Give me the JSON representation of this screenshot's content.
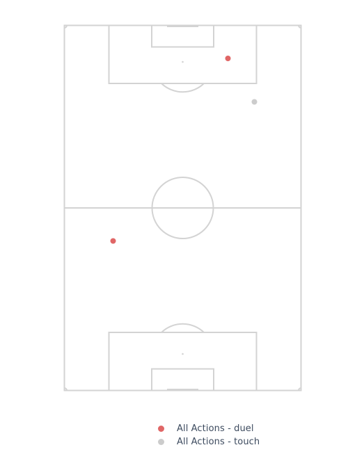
{
  "chart_data": {
    "type": "scatter",
    "title": "",
    "xlabel": "",
    "ylabel": "",
    "pitch": {
      "length": 105,
      "width": 68,
      "orientation": "vertical"
    },
    "xlim": [
      0,
      68
    ],
    "ylim": [
      0,
      105
    ],
    "grid": false,
    "legend_position": "bottom-center",
    "series": [
      {
        "name": "All Actions - duel",
        "color": "#e06666",
        "points": [
          {
            "x": 47,
            "y": 95.5
          },
          {
            "x": 14,
            "y": 43
          }
        ]
      },
      {
        "name": "All Actions - touch",
        "color": "#cccccc",
        "points": [
          {
            "x": 54.6,
            "y": 83
          }
        ]
      }
    ]
  }
}
